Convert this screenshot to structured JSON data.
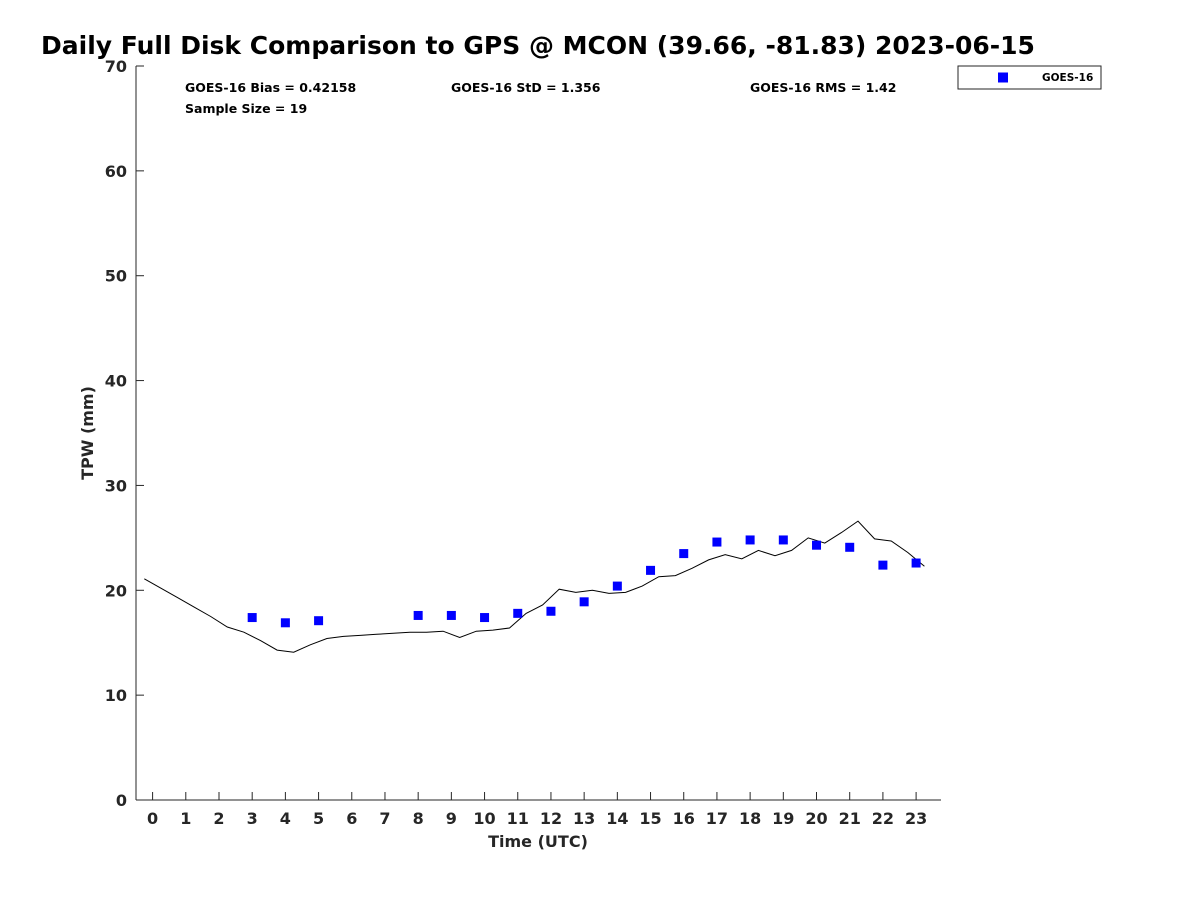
{
  "chart_data": {
    "type": "scatter",
    "title": "Daily Full Disk Comparison to GPS @ MCON (39.66, -81.83) 2023-06-15",
    "xlabel": "Time (UTC)",
    "ylabel": "TPW (mm)",
    "xlim": [
      -0.5,
      23.75
    ],
    "ylim": [
      0,
      70
    ],
    "xticks": [
      0,
      1,
      2,
      3,
      4,
      5,
      6,
      7,
      8,
      9,
      10,
      11,
      12,
      13,
      14,
      15,
      16,
      17,
      18,
      19,
      20,
      21,
      22,
      23
    ],
    "yticks": [
      0,
      10,
      20,
      30,
      40,
      50,
      60,
      70
    ],
    "grid": false,
    "legend_position": "top-right",
    "stats": {
      "bias": "GOES-16 Bias = 0.42158",
      "std": "GOES-16 StD = 1.356",
      "rms": "GOES-16 RMS = 1.42",
      "sample_size": "Sample Size = 19"
    },
    "series": [
      {
        "name": "GOES-16",
        "kind": "scatter",
        "marker": "square",
        "color": "#0000ff",
        "x": [
          3,
          4,
          5,
          8,
          9,
          10,
          11,
          12,
          13,
          14,
          15,
          16,
          17,
          18,
          19,
          20,
          21,
          22,
          23
        ],
        "y": [
          17.4,
          16.9,
          17.1,
          17.6,
          17.6,
          17.4,
          17.8,
          18.0,
          18.9,
          20.4,
          21.9,
          23.5,
          24.6,
          24.8,
          24.8,
          24.3,
          24.1,
          22.4,
          22.6
        ]
      },
      {
        "kind": "line",
        "color": "#000000",
        "x": [
          -0.25,
          0.25,
          0.75,
          1.25,
          1.75,
          2.25,
          2.75,
          3.25,
          3.75,
          4.25,
          4.75,
          5.25,
          5.75,
          6.25,
          6.75,
          7.25,
          7.75,
          8.25,
          8.75,
          9.25,
          9.75,
          10.25,
          10.75,
          11.25,
          11.75,
          12.25,
          12.75,
          13.25,
          13.75,
          14.25,
          14.75,
          15.25,
          15.75,
          16.25,
          16.75,
          17.25,
          17.75,
          18.25,
          18.75,
          19.25,
          19.75,
          20.25,
          20.75,
          21.25,
          21.75,
          22.25,
          22.75,
          23.25
        ],
        "y": [
          21.1,
          20.2,
          19.3,
          18.4,
          17.5,
          16.5,
          16.0,
          15.2,
          14.3,
          14.1,
          14.8,
          15.4,
          15.6,
          15.7,
          15.8,
          15.9,
          16.0,
          16.0,
          16.1,
          15.5,
          16.1,
          16.2,
          16.4,
          17.8,
          18.6,
          20.1,
          19.8,
          20.0,
          19.7,
          19.8,
          20.4,
          21.3,
          21.4,
          22.1,
          22.9,
          23.4,
          23.0,
          23.8,
          23.3,
          23.8,
          25.0,
          24.5,
          25.5,
          26.6,
          24.9,
          24.7,
          23.6,
          22.3
        ]
      }
    ]
  }
}
